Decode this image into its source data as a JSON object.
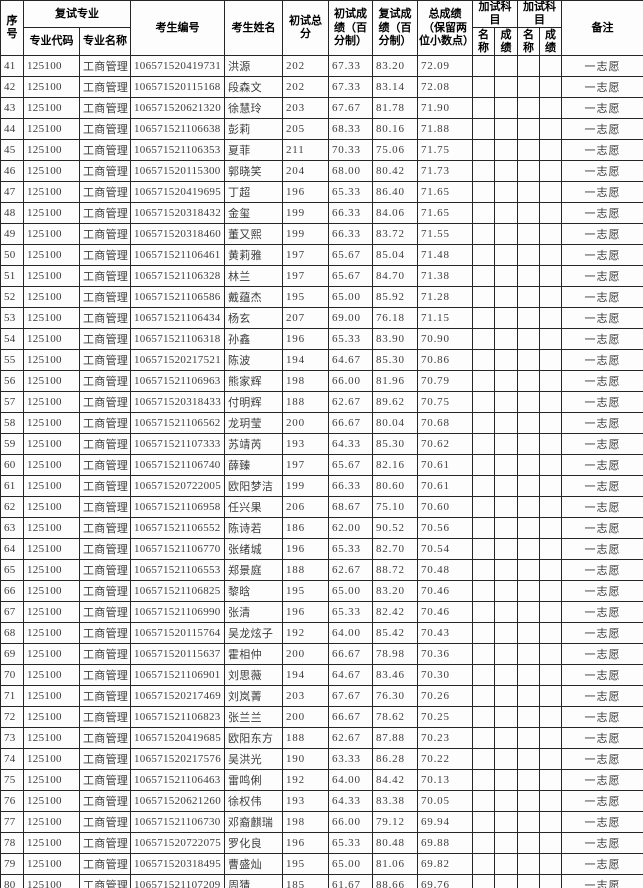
{
  "table": {
    "header": {
      "serial": "序号",
      "retest_major_group": "复试专业",
      "major_code": "专业代码",
      "major_name": "专业名称",
      "candidate_id": "考生编号",
      "candidate_name": "考生姓名",
      "initial_total": "初试总分",
      "initial_score_pct": "初试成绩（百分制）",
      "retest_score_pct": "复试成绩（百分制）",
      "final_score": "总成绩（保留两位小数点）",
      "extra_subjects_group_1": "加试科目",
      "extra_subjects_group_2": "加试科目",
      "extra_name_1": "名称",
      "extra_score_1": "成绩",
      "extra_name_2": "名称",
      "extra_score_2": "成绩",
      "remark": "备注"
    },
    "column_names": [
      "serial-number",
      "major-code",
      "major-name",
      "candidate-id",
      "candidate-name",
      "initial-total-score",
      "initial-score-percent",
      "retest-score-percent",
      "final-score",
      "extra-subject-1-name",
      "extra-subject-1-score",
      "extra-subject-2-name",
      "extra-subject-2-score",
      "remark"
    ],
    "rows": [
      [
        "41",
        "125100",
        "工商管理",
        "106571520419731",
        "洪源",
        "202",
        "67.33",
        "83.20",
        "72.09",
        "",
        "",
        "",
        "",
        "一志愿"
      ],
      [
        "42",
        "125100",
        "工商管理",
        "106571520115168",
        "段森文",
        "202",
        "67.33",
        "83.14",
        "72.08",
        "",
        "",
        "",
        "",
        "一志愿"
      ],
      [
        "43",
        "125100",
        "工商管理",
        "106571520621320",
        "徐慧玲",
        "203",
        "67.67",
        "81.78",
        "71.90",
        "",
        "",
        "",
        "",
        "一志愿"
      ],
      [
        "44",
        "125100",
        "工商管理",
        "106571521106638",
        "彭莉",
        "205",
        "68.33",
        "80.16",
        "71.88",
        "",
        "",
        "",
        "",
        "一志愿"
      ],
      [
        "45",
        "125100",
        "工商管理",
        "106571521106353",
        "夏菲",
        "211",
        "70.33",
        "75.06",
        "71.75",
        "",
        "",
        "",
        "",
        "一志愿"
      ],
      [
        "46",
        "125100",
        "工商管理",
        "106571520115300",
        "郭晓笑",
        "204",
        "68.00",
        "80.42",
        "71.73",
        "",
        "",
        "",
        "",
        "一志愿"
      ],
      [
        "47",
        "125100",
        "工商管理",
        "106571520419695",
        "丁超",
        "196",
        "65.33",
        "86.40",
        "71.65",
        "",
        "",
        "",
        "",
        "一志愿"
      ],
      [
        "48",
        "125100",
        "工商管理",
        "106571520318432",
        "金玺",
        "199",
        "66.33",
        "84.06",
        "71.65",
        "",
        "",
        "",
        "",
        "一志愿"
      ],
      [
        "49",
        "125100",
        "工商管理",
        "106571520318460",
        "董又熙",
        "199",
        "66.33",
        "83.72",
        "71.55",
        "",
        "",
        "",
        "",
        "一志愿"
      ],
      [
        "50",
        "125100",
        "工商管理",
        "106571521106461",
        "黄莉雅",
        "197",
        "65.67",
        "85.04",
        "71.48",
        "",
        "",
        "",
        "",
        "一志愿"
      ],
      [
        "51",
        "125100",
        "工商管理",
        "106571521106328",
        "林兰",
        "197",
        "65.67",
        "84.70",
        "71.38",
        "",
        "",
        "",
        "",
        "一志愿"
      ],
      [
        "52",
        "125100",
        "工商管理",
        "106571521106586",
        "戴蕴杰",
        "195",
        "65.00",
        "85.92",
        "71.28",
        "",
        "",
        "",
        "",
        "一志愿"
      ],
      [
        "53",
        "125100",
        "工商管理",
        "106571521106434",
        "杨玄",
        "207",
        "69.00",
        "76.18",
        "71.15",
        "",
        "",
        "",
        "",
        "一志愿"
      ],
      [
        "54",
        "125100",
        "工商管理",
        "106571521106318",
        "孙鑫",
        "196",
        "65.33",
        "83.90",
        "70.90",
        "",
        "",
        "",
        "",
        "一志愿"
      ],
      [
        "55",
        "125100",
        "工商管理",
        "106571520217521",
        "陈波",
        "194",
        "64.67",
        "85.30",
        "70.86",
        "",
        "",
        "",
        "",
        "一志愿"
      ],
      [
        "56",
        "125100",
        "工商管理",
        "106571521106963",
        "熊家辉",
        "198",
        "66.00",
        "81.96",
        "70.79",
        "",
        "",
        "",
        "",
        "一志愿"
      ],
      [
        "57",
        "125100",
        "工商管理",
        "106571520318433",
        "付明辉",
        "188",
        "62.67",
        "89.62",
        "70.75",
        "",
        "",
        "",
        "",
        "一志愿"
      ],
      [
        "58",
        "125100",
        "工商管理",
        "106571521106562",
        "龙玥莹",
        "200",
        "66.67",
        "80.04",
        "70.68",
        "",
        "",
        "",
        "",
        "一志愿"
      ],
      [
        "59",
        "125100",
        "工商管理",
        "106571521107333",
        "苏靖芮",
        "193",
        "64.33",
        "85.30",
        "70.62",
        "",
        "",
        "",
        "",
        "一志愿"
      ],
      [
        "60",
        "125100",
        "工商管理",
        "106571521106740",
        "薛臻",
        "197",
        "65.67",
        "82.16",
        "70.61",
        "",
        "",
        "",
        "",
        "一志愿"
      ],
      [
        "61",
        "125100",
        "工商管理",
        "106571520722005",
        "欧阳梦洁",
        "199",
        "66.33",
        "80.60",
        "70.61",
        "",
        "",
        "",
        "",
        "一志愿"
      ],
      [
        "62",
        "125100",
        "工商管理",
        "106571521106958",
        "任兴果",
        "206",
        "68.67",
        "75.10",
        "70.60",
        "",
        "",
        "",
        "",
        "一志愿"
      ],
      [
        "63",
        "125100",
        "工商管理",
        "106571521106552",
        "陈诗若",
        "186",
        "62.00",
        "90.52",
        "70.56",
        "",
        "",
        "",
        "",
        "一志愿"
      ],
      [
        "64",
        "125100",
        "工商管理",
        "106571521106770",
        "张绪城",
        "196",
        "65.33",
        "82.70",
        "70.54",
        "",
        "",
        "",
        "",
        "一志愿"
      ],
      [
        "65",
        "125100",
        "工商管理",
        "106571521106553",
        "郑景庭",
        "188",
        "62.67",
        "88.72",
        "70.48",
        "",
        "",
        "",
        "",
        "一志愿"
      ],
      [
        "66",
        "125100",
        "工商管理",
        "106571521106825",
        "黎晗",
        "195",
        "65.00",
        "83.20",
        "70.46",
        "",
        "",
        "",
        "",
        "一志愿"
      ],
      [
        "67",
        "125100",
        "工商管理",
        "106571521106990",
        "张清",
        "196",
        "65.33",
        "82.42",
        "70.46",
        "",
        "",
        "",
        "",
        "一志愿"
      ],
      [
        "68",
        "125100",
        "工商管理",
        "106571520115764",
        "吴龙炫子",
        "192",
        "64.00",
        "85.42",
        "70.43",
        "",
        "",
        "",
        "",
        "一志愿"
      ],
      [
        "69",
        "125100",
        "工商管理",
        "106571520115637",
        "霍相仲",
        "200",
        "66.67",
        "78.98",
        "70.36",
        "",
        "",
        "",
        "",
        "一志愿"
      ],
      [
        "70",
        "125100",
        "工商管理",
        "106571521106901",
        "刘思薇",
        "194",
        "64.67",
        "83.46",
        "70.30",
        "",
        "",
        "",
        "",
        "一志愿"
      ],
      [
        "71",
        "125100",
        "工商管理",
        "106571520217469",
        "刘岚菁",
        "203",
        "67.67",
        "76.30",
        "70.26",
        "",
        "",
        "",
        "",
        "一志愿"
      ],
      [
        "72",
        "125100",
        "工商管理",
        "106571521106823",
        "张兰兰",
        "200",
        "66.67",
        "78.62",
        "70.25",
        "",
        "",
        "",
        "",
        "一志愿"
      ],
      [
        "73",
        "125100",
        "工商管理",
        "106571520419685",
        "欧阳东方",
        "188",
        "62.67",
        "87.88",
        "70.23",
        "",
        "",
        "",
        "",
        "一志愿"
      ],
      [
        "74",
        "125100",
        "工商管理",
        "106571520217576",
        "吴洪光",
        "190",
        "63.33",
        "86.28",
        "70.22",
        "",
        "",
        "",
        "",
        "一志愿"
      ],
      [
        "75",
        "125100",
        "工商管理",
        "106571521106463",
        "雷鸣俐",
        "192",
        "64.00",
        "84.42",
        "70.13",
        "",
        "",
        "",
        "",
        "一志愿"
      ],
      [
        "76",
        "125100",
        "工商管理",
        "106571520621260",
        "徐权伟",
        "193",
        "64.33",
        "83.38",
        "70.05",
        "",
        "",
        "",
        "",
        "一志愿"
      ],
      [
        "77",
        "125100",
        "工商管理",
        "106571521106730",
        "邓裔麒瑞",
        "198",
        "66.00",
        "79.12",
        "69.94",
        "",
        "",
        "",
        "",
        "一志愿"
      ],
      [
        "78",
        "125100",
        "工商管理",
        "106571520722075",
        "罗化良",
        "196",
        "65.33",
        "80.48",
        "69.88",
        "",
        "",
        "",
        "",
        "一志愿"
      ],
      [
        "79",
        "125100",
        "工商管理",
        "106571520318495",
        "曹盛灿",
        "195",
        "65.00",
        "81.06",
        "69.82",
        "",
        "",
        "",
        "",
        "一志愿"
      ],
      [
        "80",
        "125100",
        "工商管理",
        "106571521107209",
        "周猜",
        "185",
        "61.67",
        "88.66",
        "69.76",
        "",
        "",
        "",
        "",
        "一志愿"
      ]
    ]
  }
}
